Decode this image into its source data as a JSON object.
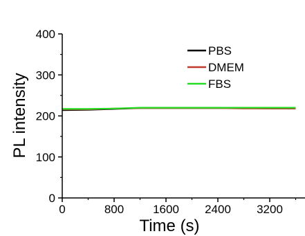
{
  "chart_data": {
    "type": "line",
    "title": "",
    "xlabel": "Time (s)",
    "ylabel": "PL intensity",
    "xlim": [
      0,
      3600
    ],
    "ylim": [
      0,
      400
    ],
    "xticks": [
      0,
      800,
      1600,
      2400,
      3200
    ],
    "yticks": [
      0,
      100,
      200,
      300,
      400
    ],
    "xtick_labels": [
      "0",
      "800",
      "1600",
      "2400",
      "3200"
    ],
    "ytick_labels": [
      "0",
      "100",
      "200",
      "300",
      "400"
    ],
    "grid": false,
    "legend_position": "top-right",
    "series": [
      {
        "name": "PBS",
        "color": "#000000",
        "x": [
          0,
          400,
          800,
          1200,
          1600,
          2000,
          2400,
          2800,
          3200,
          3600
        ],
        "y": [
          214,
          215,
          217,
          219,
          219,
          219,
          219,
          219,
          218,
          218
        ]
      },
      {
        "name": "DMEM",
        "color": "#c0392b",
        "x": [
          0,
          400,
          800,
          1200,
          1600,
          2000,
          2400,
          2800,
          3200,
          3600
        ],
        "y": [
          216,
          216,
          218,
          219,
          219,
          219,
          219,
          218,
          218,
          218
        ]
      },
      {
        "name": "FBS",
        "color": "#22dd22",
        "x": [
          0,
          400,
          800,
          1200,
          1600,
          2000,
          2400,
          2800,
          3200,
          3600
        ],
        "y": [
          217,
          217,
          218,
          220,
          220,
          220,
          220,
          220,
          220,
          220
        ]
      }
    ]
  }
}
